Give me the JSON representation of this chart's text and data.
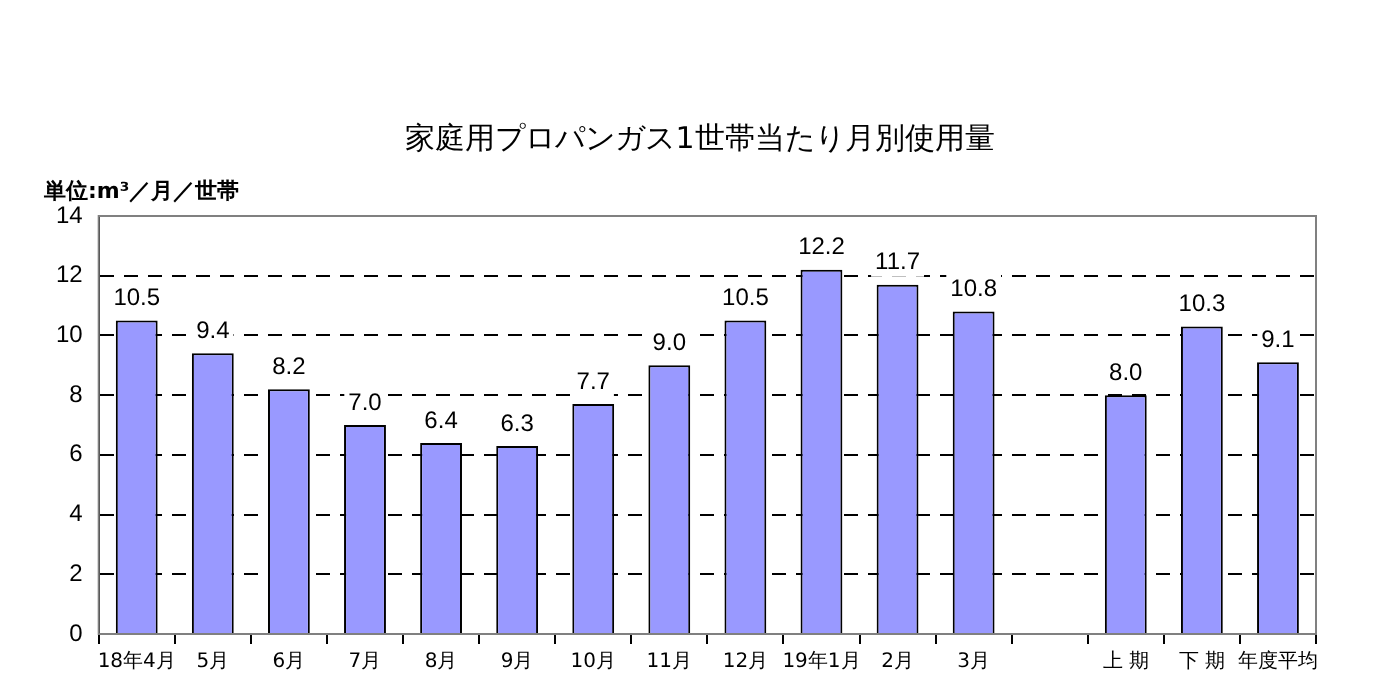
{
  "chart_data": {
    "type": "bar",
    "title": "家庭用プロパンガス1世帯当たり月別使用量",
    "ylabel": "単位:m³／月／世帯",
    "categories": [
      "18年4月",
      "5月",
      "6月",
      "7月",
      "8月",
      "9月",
      "10月",
      "11月",
      "12月",
      "19年1月",
      "2月",
      "3月",
      null,
      "上 期",
      "下 期",
      "年度平均"
    ],
    "values": [
      10.5,
      9.4,
      8.2,
      7.0,
      6.4,
      6.3,
      7.7,
      9.0,
      10.5,
      12.2,
      11.7,
      10.8,
      null,
      8.0,
      10.3,
      9.1
    ],
    "value_labels": [
      "10.5",
      "9.4",
      "8.2",
      "7.0",
      "6.4",
      "6.3",
      "7.7",
      "9.0",
      "10.5",
      "12.2",
      "11.7",
      "10.8",
      null,
      "8.0",
      "10.3",
      "9.1"
    ],
    "color": "#9999ff",
    "ylim": [
      0,
      14
    ],
    "yticks": [
      0,
      2,
      4,
      6,
      8,
      10,
      12,
      14
    ],
    "grid": "y",
    "legend": false
  }
}
